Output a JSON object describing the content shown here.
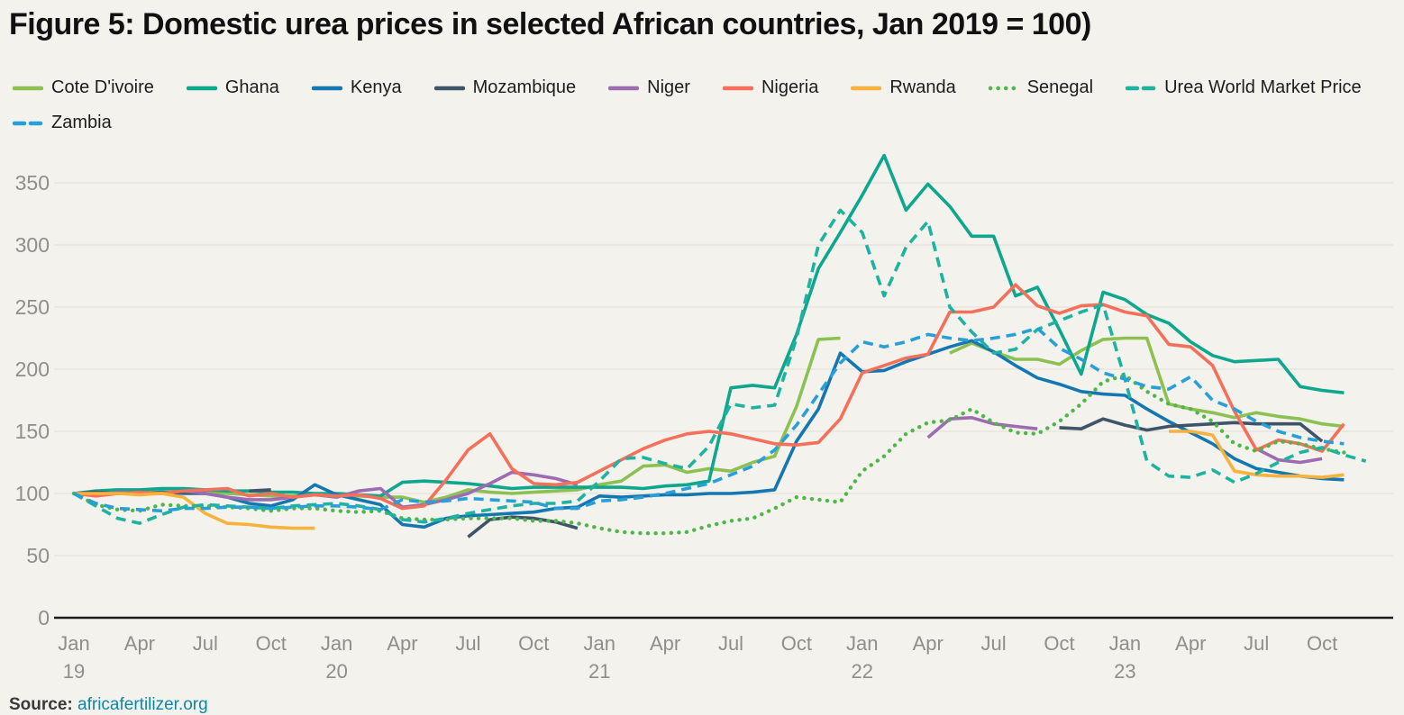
{
  "title": "Figure 5: Domestic urea prices in selected African countries, Jan 2019 = 100)",
  "source": {
    "prefix": "Source:",
    "link_text": "africafertilizer.org"
  },
  "style": {
    "background": "#f4f2ed",
    "grid_color": "#e5e2dc",
    "axis_color": "#1c1c1c",
    "tick_text_color": "#8f8e8b"
  },
  "chart_data": {
    "type": "line",
    "x_unit": "month",
    "x_start_label": "Jan 2019",
    "x_end_label": "Dec 2023",
    "ylim": [
      0,
      380
    ],
    "y_ticks": [
      0,
      50,
      100,
      150,
      200,
      250,
      300,
      350
    ],
    "grid": "horizontal",
    "legend_position": "top",
    "x_tick_labels": [
      {
        "m": 0,
        "label": "Jan",
        "year": "19"
      },
      {
        "m": 3,
        "label": "Apr"
      },
      {
        "m": 6,
        "label": "Jul"
      },
      {
        "m": 9,
        "label": "Oct"
      },
      {
        "m": 12,
        "label": "Jan",
        "year": "20"
      },
      {
        "m": 15,
        "label": "Apr"
      },
      {
        "m": 18,
        "label": "Jul"
      },
      {
        "m": 21,
        "label": "Oct"
      },
      {
        "m": 24,
        "label": "Jan",
        "year": "21"
      },
      {
        "m": 27,
        "label": "Apr"
      },
      {
        "m": 30,
        "label": "Jul"
      },
      {
        "m": 33,
        "label": "Oct"
      },
      {
        "m": 36,
        "label": "Jan",
        "year": "22"
      },
      {
        "m": 39,
        "label": "Apr"
      },
      {
        "m": 42,
        "label": "Jul"
      },
      {
        "m": 45,
        "label": "Oct"
      },
      {
        "m": 48,
        "label": "Jan",
        "year": "23"
      },
      {
        "m": 51,
        "label": "Apr"
      },
      {
        "m": 54,
        "label": "Jul"
      },
      {
        "m": 57,
        "label": "Oct"
      }
    ],
    "series": [
      {
        "name": "Cote D'ivoire",
        "color": "#8cc152",
        "line_style": "solid",
        "values": [
          100,
          101,
          102,
          101,
          102,
          102,
          101,
          100,
          99,
          98,
          98,
          99,
          99,
          98,
          97,
          97,
          93,
          97,
          103,
          101,
          100,
          101,
          102,
          103,
          107,
          110,
          122,
          123,
          117,
          120,
          118,
          125,
          130,
          170,
          224,
          225,
          null,
          null,
          null,
          null,
          213,
          221,
          214,
          208,
          208,
          204,
          215,
          224,
          225,
          225,
          172,
          168,
          165,
          161,
          165,
          162,
          160,
          156,
          154
        ]
      },
      {
        "name": "Ghana",
        "color": "#0da78d",
        "line_style": "solid",
        "values": [
          100,
          102,
          103,
          103,
          104,
          104,
          103,
          102,
          102,
          101,
          101,
          100,
          100,
          99,
          98,
          109,
          110,
          109,
          108,
          106,
          104,
          105,
          105,
          105,
          105,
          105,
          104,
          106,
          107,
          110,
          185,
          187,
          185,
          228,
          281,
          310,
          340,
          372,
          328,
          349,
          331,
          307,
          307,
          259,
          266,
          232,
          196,
          262,
          256,
          244,
          237,
          222,
          211,
          206,
          207,
          208,
          186,
          183,
          181
        ]
      },
      {
        "name": "Kenya",
        "color": "#1577b2",
        "line_style": "solid",
        "values": [
          100,
          99,
          100,
          100,
          101,
          100,
          100,
          97,
          92,
          90,
          95,
          107,
          99,
          95,
          91,
          75,
          73,
          80,
          82,
          83,
          84,
          85,
          88,
          89,
          98,
          97,
          98,
          99,
          99,
          100,
          100,
          101,
          103,
          142,
          168,
          213,
          198,
          199,
          206,
          212,
          218,
          223,
          214,
          203,
          193,
          188,
          182,
          180,
          179,
          168,
          158,
          149,
          140,
          128,
          120,
          117,
          114,
          112,
          111
        ]
      },
      {
        "name": "Mozambique",
        "color": "#3e5468",
        "line_style": "solid",
        "values": [
          100,
          101,
          100,
          101,
          100,
          101,
          100,
          null,
          102,
          103,
          null,
          null,
          null,
          null,
          null,
          null,
          null,
          null,
          65,
          79,
          81,
          80,
          77,
          72,
          null,
          null,
          null,
          null,
          null,
          null,
          null,
          null,
          null,
          null,
          null,
          null,
          null,
          null,
          null,
          null,
          null,
          null,
          null,
          null,
          null,
          153,
          152,
          160,
          155,
          151,
          154,
          155,
          156,
          157,
          156,
          156,
          156,
          142,
          null
        ]
      },
      {
        "name": "Niger",
        "color": "#9c6bb1",
        "line_style": "solid",
        "values": [
          100,
          99,
          101,
          100,
          100,
          102,
          100,
          97,
          95,
          95,
          97,
          99,
          97,
          102,
          104,
          89,
          91,
          95,
          100,
          108,
          117,
          115,
          112,
          107,
          null,
          null,
          null,
          null,
          null,
          null,
          null,
          null,
          null,
          null,
          null,
          null,
          null,
          null,
          null,
          145,
          160,
          161,
          156,
          154,
          152,
          null,
          null,
          null,
          null,
          null,
          null,
          null,
          null,
          null,
          136,
          127,
          125,
          128,
          null
        ]
      },
      {
        "name": "Nigeria",
        "color": "#f4705a",
        "line_style": "solid",
        "values": [
          100,
          98,
          100,
          101,
          100,
          102,
          103,
          104,
          98,
          100,
          97,
          99,
          98,
          99,
          96,
          88,
          90,
          111,
          135,
          148,
          120,
          108,
          107,
          109,
          118,
          127,
          136,
          143,
          148,
          150,
          148,
          144,
          140,
          139,
          141,
          160,
          197,
          203,
          209,
          212,
          246,
          246,
          250,
          268,
          251,
          245,
          251,
          252,
          246,
          243,
          220,
          218,
          203,
          166,
          135,
          143,
          140,
          134,
          156
        ]
      },
      {
        "name": "Rwanda",
        "color": "#f6b23d",
        "line_style": "solid",
        "values": [
          100,
          100,
          100,
          99,
          100,
          97,
          84,
          76,
          75,
          73,
          72,
          72,
          null,
          null,
          null,
          null,
          null,
          null,
          null,
          null,
          null,
          null,
          null,
          null,
          null,
          null,
          null,
          null,
          null,
          null,
          null,
          null,
          null,
          null,
          null,
          null,
          null,
          null,
          null,
          null,
          null,
          null,
          null,
          null,
          null,
          null,
          null,
          null,
          null,
          null,
          150,
          150,
          147,
          118,
          115,
          114,
          114,
          113,
          115
        ]
      },
      {
        "name": "Senegal",
        "color": "#4eb748",
        "line_style": "dotted",
        "values": [
          100,
          91,
          87,
          86,
          91,
          90,
          90,
          89,
          88,
          86,
          88,
          88,
          86,
          85,
          86,
          80,
          79,
          79,
          80,
          80,
          80,
          78,
          78,
          76,
          72,
          69,
          68,
          68,
          69,
          74,
          78,
          80,
          88,
          97,
          95,
          93,
          118,
          130,
          148,
          157,
          159,
          168,
          157,
          149,
          148,
          158,
          172,
          190,
          195,
          182,
          172,
          168,
          158,
          140,
          134,
          142,
          140,
          136,
          133
        ]
      },
      {
        "name": "Urea World Market Price",
        "color": "#1eb3a0",
        "line_style": "dashed",
        "values": [
          100,
          90,
          80,
          76,
          83,
          89,
          91,
          90,
          89,
          88,
          90,
          91,
          92,
          90,
          87,
          79,
          77,
          80,
          84,
          87,
          90,
          92,
          92,
          94,
          110,
          128,
          129,
          124,
          120,
          138,
          172,
          169,
          171,
          225,
          300,
          328,
          310,
          259,
          298,
          319,
          250,
          230,
          213,
          216,
          232,
          239,
          246,
          252,
          192,
          126,
          114,
          113,
          119,
          109,
          116,
          125,
          133,
          137,
          131,
          126
        ]
      },
      {
        "name": "Zambia",
        "color": "#279fd9",
        "line_style": "dashed",
        "values": [
          100,
          92,
          88,
          87,
          86,
          88,
          88,
          89,
          89,
          88,
          89,
          90,
          90,
          89,
          87,
          95,
          93,
          94,
          96,
          95,
          94,
          93,
          88,
          88,
          94,
          95,
          97,
          100,
          104,
          108,
          115,
          122,
          135,
          155,
          180,
          205,
          222,
          218,
          222,
          228,
          225,
          223,
          225,
          228,
          233,
          217,
          208,
          197,
          192,
          186,
          184,
          194,
          175,
          168,
          158,
          150,
          145,
          142,
          140
        ]
      }
    ]
  }
}
